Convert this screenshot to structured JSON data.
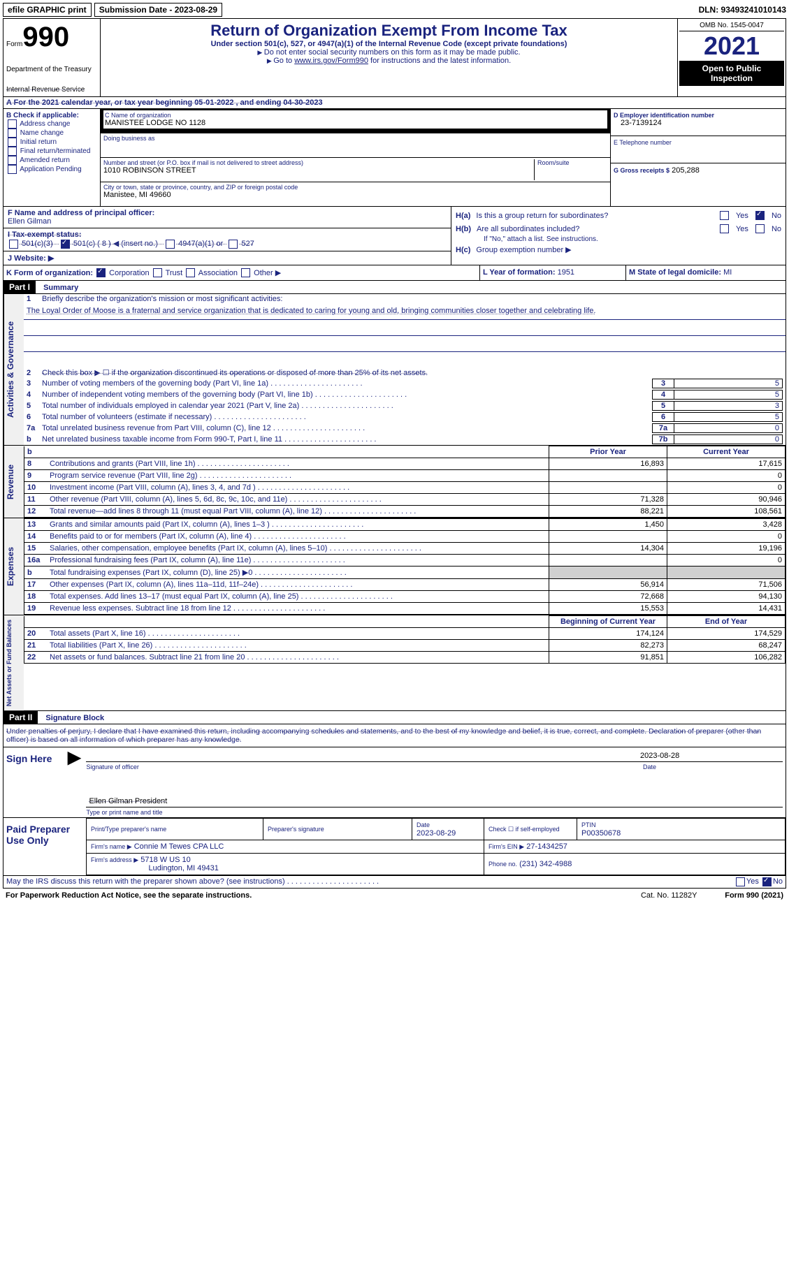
{
  "topbar": {
    "efile_label": "efile GRAPHIC print",
    "submission_label": "Submission Date - 2023-08-29",
    "dln_label": "DLN: 93493241010143"
  },
  "header": {
    "form_word": "Form",
    "form_number": "990",
    "dept": "Department of the Treasury",
    "irs": "Internal Revenue Service",
    "title": "Return of Organization Exempt From Income Tax",
    "subtitle": "Under section 501(c), 527, or 4947(a)(1) of the Internal Revenue Code (except private foundations)",
    "note1": "Do not enter social security numbers on this form as it may be made public.",
    "note2_prefix": "Go to ",
    "note2_link": "www.irs.gov/Form990",
    "note2_suffix": " for instructions and the latest information.",
    "omb": "OMB No. 1545-0047",
    "year": "2021",
    "open_pub": "Open to Public Inspection"
  },
  "row_a": {
    "text": "A For the 2021 calendar year, or tax year beginning 05-01-2022    , and ending 04-30-2023"
  },
  "col_b": {
    "title": "B Check if applicable:",
    "items": [
      "Address change",
      "Name change",
      "Initial return",
      "Final return/terminated",
      "Amended return",
      "Application Pending"
    ]
  },
  "col_c": {
    "name_label": "C Name of organization",
    "name": "MANISTEE LODGE NO 1128",
    "dba_label": "Doing business as",
    "dba": "",
    "addr_label": "Number and street (or P.O. box if mail is not delivered to street address)",
    "addr": "1010 ROBINSON STREET",
    "room_label": "Room/suite",
    "city_label": "City or town, state or province, country, and ZIP or foreign postal code",
    "city": "Manistee, MI  49660"
  },
  "col_d": {
    "ein_label": "D Employer identification number",
    "ein": "23-7139124",
    "tel_label": "E Telephone number",
    "tel": "",
    "gross_label": "G Gross receipts $",
    "gross": "205,288"
  },
  "row_f": {
    "label": "F Name and address of principal officer:",
    "name": "Ellen Gilman"
  },
  "row_i": {
    "label": "I Tax-exempt status:",
    "opt_501c3": "501(c)(3)",
    "opt_501c": "501(c) ( 8 ) ◀ (insert no.)",
    "opt_4947": "4947(a)(1) or",
    "opt_527": "527"
  },
  "row_j": {
    "label": "J Website: ▶"
  },
  "row_h": {
    "ha_label": "H(a)",
    "ha_text": "Is this a group return for subordinates?",
    "hb_label": "H(b)",
    "hb_text": "Are all subordinates included?",
    "hb_note": "If \"No,\" attach a list. See instructions.",
    "hc_label": "H(c)",
    "hc_text": "Group exemption number ▶",
    "yes": "Yes",
    "no": "No"
  },
  "row_k": {
    "label": "K Form of organization:",
    "corp": "Corporation",
    "trust": "Trust",
    "assoc": "Association",
    "other": "Other ▶"
  },
  "row_l": {
    "label": "L Year of formation:",
    "val": "1951"
  },
  "row_m": {
    "label": "M State of legal domicile:",
    "val": "MI"
  },
  "part1": {
    "hdr": "Part I",
    "title": "Summary",
    "line1_label": "1",
    "line1_text": "Briefly describe the organization's mission or most significant activities:",
    "mission": "The Loyal Order of Moose is a fraternal and service organization that is dedicated to caring for young and old, bringing communities closer together and celebrating life.",
    "line2_label": "2",
    "line2_text": "Check this box ▶ ☐ if the organization discontinued its operations or disposed of more than 25% of its net assets.",
    "rows": [
      {
        "n": "3",
        "d": "Number of voting members of the governing body (Part VI, line 1a)",
        "nb": "3",
        "v": "5"
      },
      {
        "n": "4",
        "d": "Number of independent voting members of the governing body (Part VI, line 1b)",
        "nb": "4",
        "v": "5"
      },
      {
        "n": "5",
        "d": "Total number of individuals employed in calendar year 2021 (Part V, line 2a)",
        "nb": "5",
        "v": "3"
      },
      {
        "n": "6",
        "d": "Total number of volunteers (estimate if necessary)",
        "nb": "6",
        "v": "5"
      },
      {
        "n": "7a",
        "d": "Total unrelated business revenue from Part VIII, column (C), line 12",
        "nb": "7a",
        "v": "0"
      },
      {
        "n": "b",
        "d": "Net unrelated business taxable income from Form 990-T, Part I, line 11",
        "nb": "7b",
        "v": "0"
      }
    ]
  },
  "revenue": {
    "label": "Revenue",
    "hdr_prior": "Prior Year",
    "hdr_curr": "Current Year",
    "rows": [
      {
        "n": "8",
        "d": "Contributions and grants (Part VIII, line 1h)",
        "p": "16,893",
        "c": "17,615"
      },
      {
        "n": "9",
        "d": "Program service revenue (Part VIII, line 2g)",
        "p": "",
        "c": "0"
      },
      {
        "n": "10",
        "d": "Investment income (Part VIII, column (A), lines 3, 4, and 7d )",
        "p": "",
        "c": "0"
      },
      {
        "n": "11",
        "d": "Other revenue (Part VIII, column (A), lines 5, 6d, 8c, 9c, 10c, and 11e)",
        "p": "71,328",
        "c": "90,946"
      },
      {
        "n": "12",
        "d": "Total revenue—add lines 8 through 11 (must equal Part VIII, column (A), line 12)",
        "p": "88,221",
        "c": "108,561"
      }
    ]
  },
  "expenses": {
    "label": "Expenses",
    "rows": [
      {
        "n": "13",
        "d": "Grants and similar amounts paid (Part IX, column (A), lines 1–3 )",
        "p": "1,450",
        "c": "3,428"
      },
      {
        "n": "14",
        "d": "Benefits paid to or for members (Part IX, column (A), line 4)",
        "p": "",
        "c": "0"
      },
      {
        "n": "15",
        "d": "Salaries, other compensation, employee benefits (Part IX, column (A), lines 5–10)",
        "p": "14,304",
        "c": "19,196"
      },
      {
        "n": "16a",
        "d": "Professional fundraising fees (Part IX, column (A), line 11e)",
        "p": "",
        "c": "0"
      },
      {
        "n": "b",
        "d": "Total fundraising expenses (Part IX, column (D), line 25) ▶0",
        "p": "shaded",
        "c": "shaded"
      },
      {
        "n": "17",
        "d": "Other expenses (Part IX, column (A), lines 11a–11d, 11f–24e)",
        "p": "56,914",
        "c": "71,506"
      },
      {
        "n": "18",
        "d": "Total expenses. Add lines 13–17 (must equal Part IX, column (A), line 25)",
        "p": "72,668",
        "c": "94,130"
      },
      {
        "n": "19",
        "d": "Revenue less expenses. Subtract line 18 from line 12",
        "p": "15,553",
        "c": "14,431"
      }
    ]
  },
  "netassets": {
    "label": "Net Assets or Fund Balances",
    "hdr_beg": "Beginning of Current Year",
    "hdr_end": "End of Year",
    "rows": [
      {
        "n": "20",
        "d": "Total assets (Part X, line 16)",
        "p": "174,124",
        "c": "174,529"
      },
      {
        "n": "21",
        "d": "Total liabilities (Part X, line 26)",
        "p": "82,273",
        "c": "68,247"
      },
      {
        "n": "22",
        "d": "Net assets or fund balances. Subtract line 21 from line 20",
        "p": "91,851",
        "c": "106,282"
      }
    ]
  },
  "part2": {
    "hdr": "Part II",
    "title": "Signature Block",
    "perjury": "Under penalties of perjury, I declare that I have examined this return, including accompanying schedules and statements, and to the best of my knowledge and belief, it is true, correct, and complete. Declaration of preparer (other than officer) is based on all information of which preparer has any knowledge.",
    "sign_here": "Sign Here",
    "sig_officer_label": "Signature of officer",
    "sig_date": "2023-08-28",
    "officer_name": "Ellen Gilman  President",
    "type_label": "Type or print name and title",
    "paid": "Paid Preparer Use Only",
    "prep_name_label": "Print/Type preparer's name",
    "prep_sig_label": "Preparer's signature",
    "date_label": "Date",
    "date_val": "2023-08-29",
    "check_self": "Check ☐ if self-employed",
    "ptin_label": "PTIN",
    "ptin": "P00350678",
    "firm_name_label": "Firm's name    ▶",
    "firm_name": "Connie M Tewes CPA LLC",
    "firm_ein_label": "Firm's EIN ▶",
    "firm_ein": "27-1434257",
    "firm_addr_label": "Firm's address ▶",
    "firm_addr": "5718 W US 10",
    "firm_city": "Ludington, MI  49431",
    "phone_label": "Phone no.",
    "phone": "(231) 342-4988",
    "discuss": "May the IRS discuss this return with the preparer shown above? (see instructions)"
  },
  "footer": {
    "pra": "For Paperwork Reduction Act Notice, see the separate instructions.",
    "cat": "Cat. No. 11282Y",
    "form": "Form 990 (2021)"
  }
}
